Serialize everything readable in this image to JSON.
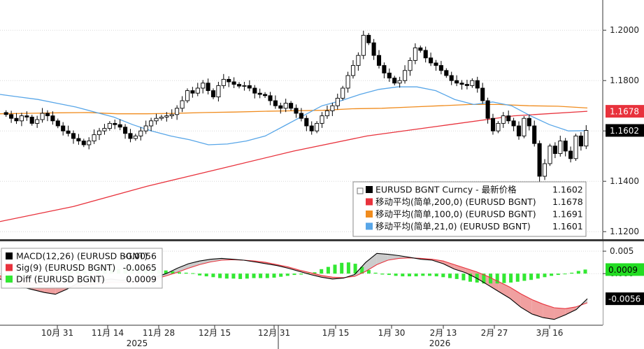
{
  "chart_data": [
    {
      "type": "candlestick",
      "panel": "price",
      "y_ticks": [
        "1.1200",
        "1.1400",
        "1.1600",
        "1.1800",
        "1.2000"
      ],
      "ylim": [
        1.117,
        1.212
      ],
      "grid": true,
      "legend_position": "bottom-right",
      "legend": [
        {
          "label": "EURUSD BGNT Curncy - 最新价格",
          "value": "1.1602",
          "color": "#000000"
        },
        {
          "label": "移动平均(简单,200,0) (EURUSD BGNT)",
          "value": "1.1678",
          "color": "#e8323c"
        },
        {
          "label": "移动平均(简单,100,0) (EURUSD BGNT)",
          "value": "1.1691",
          "color": "#f08c1e"
        },
        {
          "label": "移动平均(简单,21,0) (EURUSD BGNT)",
          "value": "1.1601",
          "color": "#58a6e8"
        }
      ],
      "price_tags": [
        {
          "value": "1.1678",
          "y": 1.1678,
          "bg": "#e8323c",
          "fg": "#ffffff"
        },
        {
          "value": "1.1602",
          "y": 1.1602,
          "bg": "#000000",
          "fg": "#ffffff"
        }
      ],
      "closes": [
        1.1665,
        1.165,
        1.164,
        1.166,
        1.1655,
        1.163,
        1.1645,
        1.167,
        1.166,
        1.164,
        1.162,
        1.16,
        1.159,
        1.157,
        1.156,
        1.1545,
        1.156,
        1.1585,
        1.16,
        1.161,
        1.163,
        1.1625,
        1.1615,
        1.159,
        1.157,
        1.158,
        1.16,
        1.162,
        1.164,
        1.165,
        1.1655,
        1.166,
        1.1665,
        1.169,
        1.172,
        1.176,
        1.175,
        1.177,
        1.179,
        1.176,
        1.1735,
        1.178,
        1.1805,
        1.1795,
        1.1785,
        1.1778,
        1.178,
        1.177,
        1.175,
        1.1745,
        1.174,
        1.172,
        1.17,
        1.169,
        1.171,
        1.169,
        1.167,
        1.165,
        1.162,
        1.16,
        1.163,
        1.166,
        1.168,
        1.17,
        1.173,
        1.177,
        1.182,
        1.186,
        1.19,
        1.198,
        1.195,
        1.19,
        1.186,
        1.183,
        1.181,
        1.179,
        1.18,
        1.184,
        1.188,
        1.193,
        1.192,
        1.189,
        1.187,
        1.186,
        1.184,
        1.182,
        1.18,
        1.179,
        1.1785,
        1.178,
        1.18,
        1.177,
        1.172,
        1.165,
        1.16,
        1.163,
        1.166,
        1.164,
        1.162,
        1.158,
        1.165,
        1.162,
        1.155,
        1.142,
        1.147,
        1.154,
        1.151,
        1.156,
        1.152,
        1.149,
        1.158,
        1.154,
        1.1602
      ],
      "sma21": [
        1.1745,
        1.1735,
        1.1725,
        1.171,
        1.1695,
        1.1675,
        1.1655,
        1.1625,
        1.16,
        1.158,
        1.1565,
        1.1545,
        1.1548,
        1.156,
        1.158,
        1.162,
        1.166,
        1.17,
        1.172,
        1.1745,
        1.1765,
        1.1775,
        1.1775,
        1.176,
        1.1725,
        1.1705,
        1.1715,
        1.17,
        1.166,
        1.1625,
        1.16,
        1.1601
      ],
      "sma100": [
        1.1668,
        1.167,
        1.1672,
        1.1673,
        1.1668,
        1.1668,
        1.167,
        1.1673,
        1.1675,
        1.1678,
        1.168,
        1.1682,
        1.1688,
        1.169,
        1.1695,
        1.17,
        1.1705,
        1.1705,
        1.17,
        1.1698,
        1.1691
      ],
      "sma200": [
        1.124,
        1.13,
        1.138,
        1.145,
        1.152,
        1.158,
        1.162,
        1.166,
        1.1678
      ]
    },
    {
      "type": "bar-line",
      "panel": "macd",
      "y_ticks": [
        "0.005",
        "0.000"
      ],
      "ylim": [
        -0.0115,
        0.0072
      ],
      "legend_position": "top-left",
      "legend": [
        {
          "label": "MACD(12,26) (EURUSD BGNT)",
          "value": "-0.0056",
          "color": "#000000"
        },
        {
          "label": "Sig(9) (EURUSD BGNT)",
          "value": "-0.0065",
          "color": "#e8323c"
        },
        {
          "label": "Diff (EURUSD BGNT)",
          "value": "0.0009",
          "color": "#32e832"
        }
      ],
      "value_tags": [
        {
          "value": "0.0009",
          "y": 0.0009,
          "bg": "#22dd22",
          "fg": "#000000"
        },
        {
          "value": "-0.0056",
          "y": -0.0056,
          "bg": "#000000",
          "fg": "#ffffff"
        }
      ],
      "macd": [
        -0.0012,
        -0.002,
        -0.003,
        -0.0036,
        -0.0042,
        -0.0046,
        -0.0035,
        -0.0022,
        -0.0018,
        -0.0016,
        -0.0012,
        -0.0015,
        -0.0012,
        -0.001,
        -0.0008,
        0.0,
        0.0012,
        0.0022,
        0.0028,
        0.0032,
        0.0034,
        0.0032,
        0.003,
        0.0026,
        0.0022,
        0.0018,
        0.0012,
        0.0005,
        -0.0002,
        -0.0008,
        -0.0012,
        -0.001,
        -0.0002,
        0.0025,
        0.0045,
        0.0043,
        0.004,
        0.0036,
        0.0032,
        0.003,
        0.0022,
        0.001,
        0.0002,
        -0.001,
        -0.0025,
        -0.004,
        -0.0055,
        -0.0075,
        -0.009,
        -0.0098,
        -0.0102,
        -0.0092,
        -0.008,
        -0.0056
      ],
      "signal": [
        -0.0005,
        -0.001,
        -0.0015,
        -0.002,
        -0.0025,
        -0.003,
        -0.003,
        -0.0028,
        -0.0025,
        -0.0022,
        -0.002,
        -0.002,
        -0.0018,
        -0.0015,
        -0.0012,
        -0.0005,
        0.0003,
        0.0012,
        0.002,
        0.0026,
        0.003,
        0.0031,
        0.003,
        0.0028,
        0.0025,
        0.002,
        0.0015,
        0.0008,
        0.0002,
        -0.0004,
        -0.0008,
        -0.0009,
        -0.0006,
        0.0005,
        0.002,
        0.003,
        0.0034,
        0.0035,
        0.0034,
        0.0032,
        0.0028,
        0.002,
        0.0012,
        0.0004,
        -0.0006,
        -0.0018,
        -0.003,
        -0.0045,
        -0.0058,
        -0.0068,
        -0.0076,
        -0.0078,
        -0.0074,
        -0.0065
      ],
      "diff": [
        -0.0003,
        -0.0004,
        -0.0005,
        -0.0005,
        -0.0003,
        -0.0002,
        0.0001,
        0.0003,
        0.0004,
        0.0005,
        0.0005,
        0.0006,
        0.0006,
        0.0007,
        0.0008,
        0.0008,
        0.0009,
        0.001,
        0.0011,
        0.0011,
        0.001,
        0.0009,
        0.0008,
        0.0008,
        0.0007,
        0.0005,
        0.0003,
        0.0002,
        0.0001,
        -0.0004,
        -0.0006,
        -0.0008,
        -0.001,
        -0.0011,
        -0.0011,
        -0.0012,
        -0.0011,
        -0.001,
        -0.001,
        -0.001,
        -0.0009,
        -0.0007,
        -0.0005,
        -0.0003,
        -0.0002,
        0.0001,
        0.0003,
        0.001,
        0.0015,
        0.002,
        0.0024,
        0.0025,
        0.0022,
        0.0015,
        0.0008,
        0.0002,
        -0.0002,
        -0.0003,
        -0.0005,
        -0.0006,
        -0.0006,
        -0.0006,
        -0.0005,
        -0.0005,
        -0.0006,
        -0.0008,
        -0.001,
        -0.0012,
        -0.0015,
        -0.0018,
        -0.002,
        -0.0022,
        -0.0022,
        -0.0022,
        -0.0021,
        -0.002,
        -0.0018,
        -0.0016,
        -0.0014,
        -0.0011,
        -0.0008,
        -0.0005,
        -0.0003,
        -0.0001,
        0.0002,
        0.0006,
        0.0009
      ]
    }
  ],
  "x_ticks": [
    "10月 31",
    "11月 14",
    "11月 28",
    "12月 15",
    "12月 31",
    "1月 15",
    "1月 30",
    "2月 13",
    "2月 27",
    "3月 16"
  ],
  "x_years": [
    "2025",
    "2026"
  ]
}
